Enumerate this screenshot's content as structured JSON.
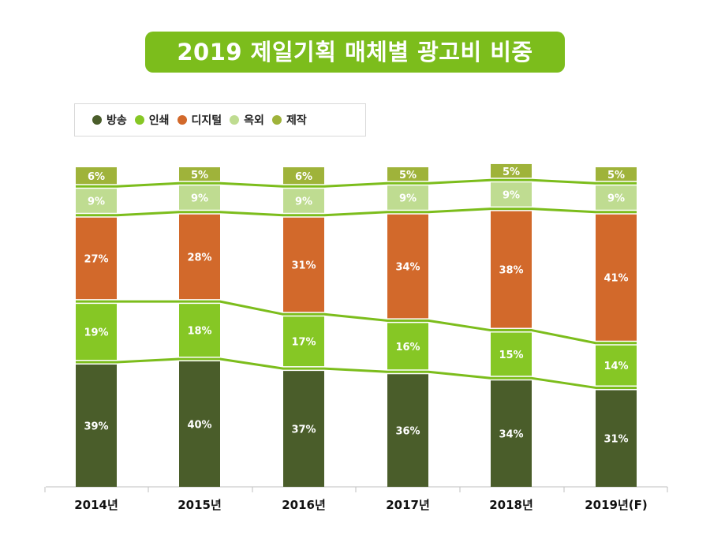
{
  "chart_data": {
    "type": "bar",
    "stacked": true,
    "percent": true,
    "title": "2019 제일기획 매체별 광고비 비중",
    "categories": [
      "2014년",
      "2015년",
      "2016년",
      "2017년",
      "2018년",
      "2019년(F)"
    ],
    "series": [
      {
        "name": "방송",
        "color": "#4a5d2a",
        "values": [
          39,
          40,
          37,
          36,
          34,
          31
        ],
        "labels": [
          "39%",
          "40%",
          "37%",
          "36%",
          "34%",
          "31%"
        ]
      },
      {
        "name": "인쇄",
        "color": "#86c725",
        "values": [
          19,
          18,
          17,
          16,
          15,
          14
        ],
        "labels": [
          "19%",
          "18%",
          "17%",
          "16%",
          "15%",
          "14%"
        ]
      },
      {
        "name": "디지털",
        "color": "#d2692b",
        "values": [
          27,
          28,
          31,
          34,
          38,
          41
        ],
        "labels": [
          "27%",
          "28%",
          "31%",
          "34%",
          "38%",
          "41%"
        ]
      },
      {
        "name": "옥외",
        "color": "#bfdc91",
        "values": [
          9,
          9,
          9,
          9,
          9,
          9
        ],
        "labels": [
          "9%",
          "9%",
          "9%",
          "9%",
          "9%",
          "9%"
        ]
      },
      {
        "name": "제작",
        "color": "#9fb33a",
        "values": [
          6,
          5,
          6,
          5,
          5,
          5
        ],
        "labels": [
          "6%",
          "5%",
          "6%",
          "5%",
          "5%",
          "5%"
        ]
      }
    ],
    "xlabel": "",
    "ylabel": "",
    "legend": "top-left",
    "grid": false,
    "connector_line_color": "#7cbd1c"
  }
}
